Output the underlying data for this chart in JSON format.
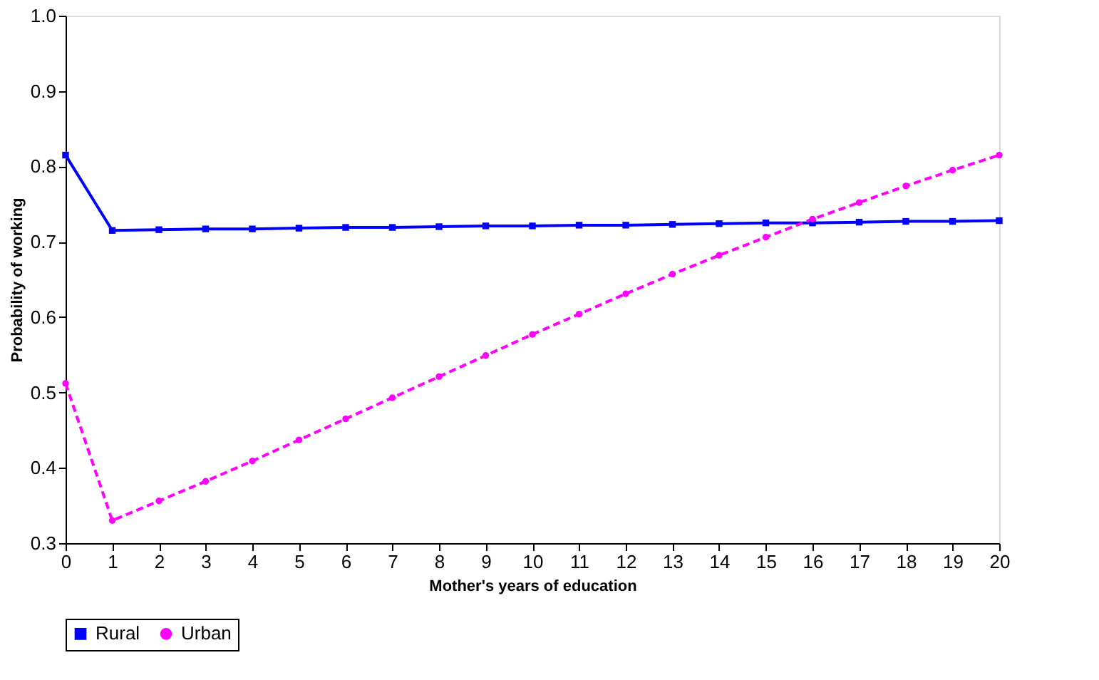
{
  "chart_data": {
    "type": "line",
    "xlabel": "Mother's years of education",
    "ylabel": "Probability of working",
    "x": [
      0,
      1,
      2,
      3,
      4,
      5,
      6,
      7,
      8,
      9,
      10,
      11,
      12,
      13,
      14,
      15,
      16,
      17,
      18,
      19,
      20
    ],
    "series": [
      {
        "name": "Rural",
        "color": "#0000ff",
        "marker": "square",
        "line_style": "solid",
        "values": [
          0.815,
          0.715,
          0.716,
          0.717,
          0.717,
          0.718,
          0.719,
          0.719,
          0.72,
          0.721,
          0.721,
          0.722,
          0.722,
          0.723,
          0.724,
          0.725,
          0.725,
          0.726,
          0.727,
          0.727,
          0.728
        ]
      },
      {
        "name": "Urban",
        "color": "#ff00ff",
        "marker": "circle",
        "line_style": "dashed",
        "values": [
          0.512,
          0.33,
          0.356,
          0.382,
          0.409,
          0.437,
          0.465,
          0.493,
          0.521,
          0.549,
          0.577,
          0.604,
          0.631,
          0.657,
          0.682,
          0.706,
          0.73,
          0.752,
          0.774,
          0.795,
          0.815
        ]
      }
    ],
    "xlim": [
      0,
      20
    ],
    "xticks": [
      0,
      1,
      2,
      3,
      4,
      5,
      6,
      7,
      8,
      9,
      10,
      11,
      12,
      13,
      14,
      15,
      16,
      17,
      18,
      19,
      20
    ],
    "ylim": [
      0.3,
      1.0
    ],
    "yticks": [
      0.3,
      0.4,
      0.5,
      0.6,
      0.7,
      0.8,
      0.9,
      {
        "value": 1.0,
        "label": "1.0"
      }
    ],
    "grid": false,
    "legend": "bottom"
  }
}
